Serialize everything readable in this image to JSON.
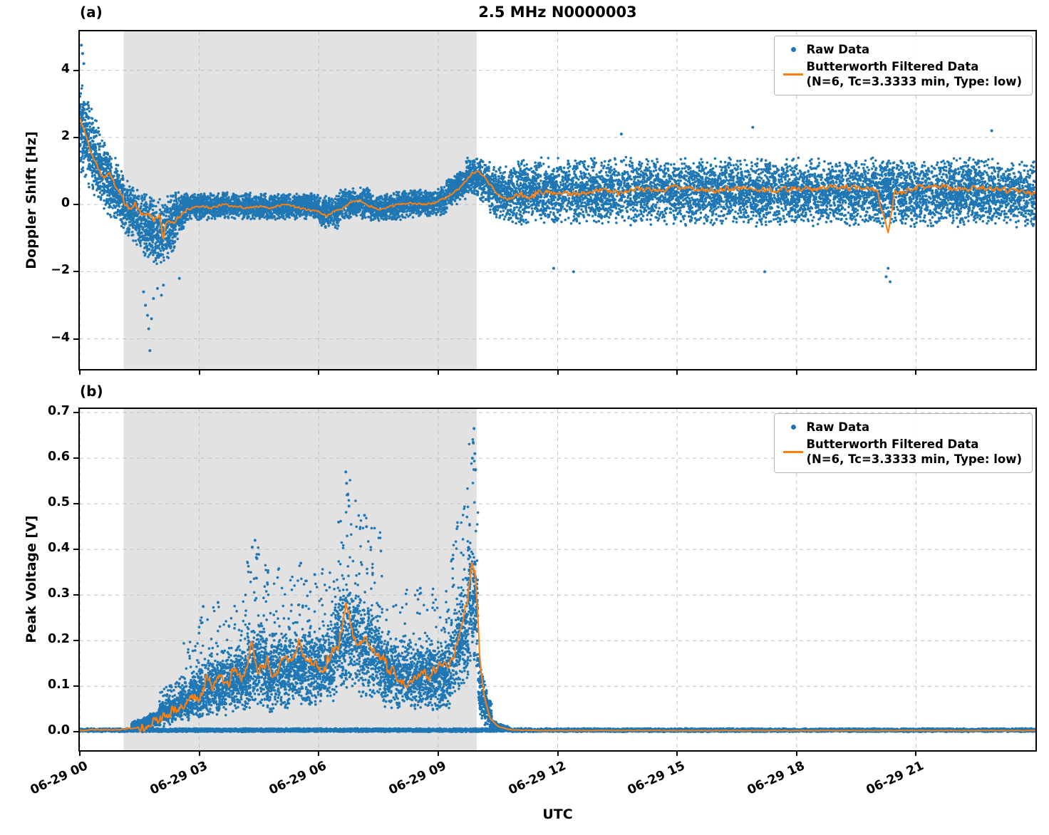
{
  "title": "2.5 MHz N0000003",
  "xlabel": "UTC",
  "legend": {
    "raw_label": "Raw Data",
    "filtered_label_line1": "Butterworth Filtered Data",
    "filtered_label_line2": "(N=6, Tc=3.3333 min, Type: low)"
  },
  "colors": {
    "raw": "#1f77b4",
    "filtered": "#ff7f0e",
    "shade": "rgba(190,190,190,0.45)",
    "grid": "#bbbbbb",
    "text": "#000000"
  },
  "chart_data": [
    {
      "type": "scatter",
      "panel_label": "(a)",
      "ylabel": "Doppler Shift [Hz]",
      "ylim": [
        -4.9,
        5.16
      ],
      "xlim": [
        0,
        24
      ],
      "grid": true,
      "legend_position": "upper right",
      "seed": 42,
      "yticks": {
        "values": [
          4,
          2,
          0,
          -2,
          -4
        ],
        "labels": [
          "4",
          "2",
          "0",
          "−2",
          "−4"
        ]
      },
      "xticks": {
        "values": [
          0,
          3,
          6,
          9,
          12,
          15,
          18,
          21
        ],
        "labels": [
          "06-29 00",
          "06-29 03",
          "06-29 06",
          "06-29 09",
          "06-29 12",
          "06-29 15",
          "06-29 18",
          "06-29 21"
        ]
      },
      "shaded_region": [
        1.1,
        9.97
      ],
      "series_names": [
        "Raw Data",
        "Butterworth Filtered Data (N=6, Tc=3.3333 min, Type: low)"
      ],
      "filtered_keypoints": [
        [
          0,
          2.6
        ],
        [
          0.15,
          2.0
        ],
        [
          0.3,
          1.5
        ],
        [
          0.45,
          1.1
        ],
        [
          0.6,
          0.8
        ],
        [
          0.75,
          0.95
        ],
        [
          0.9,
          0.55
        ],
        [
          1.0,
          0.4
        ],
        [
          1.1,
          0.1
        ],
        [
          1.25,
          -0.2
        ],
        [
          1.4,
          0.05
        ],
        [
          1.55,
          -0.35
        ],
        [
          1.7,
          -0.2
        ],
        [
          1.85,
          -0.5
        ],
        [
          2.0,
          -0.3
        ],
        [
          2.1,
          -1.05
        ],
        [
          2.2,
          -0.45
        ],
        [
          2.35,
          -0.6
        ],
        [
          2.5,
          -0.3
        ],
        [
          2.7,
          -0.15
        ],
        [
          3.0,
          -0.05
        ],
        [
          3.3,
          -0.1
        ],
        [
          3.6,
          0.0
        ],
        [
          3.9,
          -0.05
        ],
        [
          4.2,
          -0.1
        ],
        [
          4.5,
          -0.05
        ],
        [
          4.8,
          -0.1
        ],
        [
          5.1,
          0.0
        ],
        [
          5.4,
          -0.05
        ],
        [
          5.7,
          -0.15
        ],
        [
          6.0,
          -0.2
        ],
        [
          6.2,
          -0.35
        ],
        [
          6.4,
          -0.2
        ],
        [
          6.6,
          -0.1
        ],
        [
          6.8,
          0.05
        ],
        [
          7.0,
          0.15
        ],
        [
          7.2,
          0.0
        ],
        [
          7.4,
          -0.1
        ],
        [
          7.6,
          -0.15
        ],
        [
          7.8,
          -0.05
        ],
        [
          8.0,
          0.0
        ],
        [
          8.3,
          0.05
        ],
        [
          8.6,
          0.0
        ],
        [
          8.9,
          0.05
        ],
        [
          9.2,
          0.2
        ],
        [
          9.5,
          0.45
        ],
        [
          9.7,
          0.7
        ],
        [
          9.85,
          0.95
        ],
        [
          10.0,
          1.0
        ],
        [
          10.15,
          0.85
        ],
        [
          10.3,
          0.6
        ],
        [
          10.5,
          0.3
        ],
        [
          10.7,
          0.15
        ],
        [
          10.9,
          0.25
        ],
        [
          11.1,
          0.3
        ],
        [
          11.3,
          0.2
        ],
        [
          11.5,
          0.35
        ],
        [
          12.0,
          0.4
        ],
        [
          12.5,
          0.3
        ],
        [
          13.0,
          0.45
        ],
        [
          13.5,
          0.35
        ],
        [
          14.0,
          0.5
        ],
        [
          14.5,
          0.4
        ],
        [
          15.0,
          0.55
        ],
        [
          15.5,
          0.45
        ],
        [
          16.0,
          0.4
        ],
        [
          16.5,
          0.5
        ],
        [
          17.0,
          0.45
        ],
        [
          17.5,
          0.4
        ],
        [
          18.0,
          0.5
        ],
        [
          18.5,
          0.45
        ],
        [
          19.0,
          0.55
        ],
        [
          19.5,
          0.5
        ],
        [
          20.0,
          0.45
        ],
        [
          20.3,
          -0.85
        ],
        [
          20.45,
          0.3
        ],
        [
          21.0,
          0.5
        ],
        [
          21.5,
          0.55
        ],
        [
          22.0,
          0.45
        ],
        [
          22.5,
          0.5
        ],
        [
          23.0,
          0.45
        ],
        [
          23.5,
          0.4
        ],
        [
          24.0,
          0.3
        ]
      ],
      "filtered_noise": [
        [
          0,
          1.0,
          0.08
        ],
        [
          1.0,
          2.6,
          0.12
        ],
        [
          2.6,
          9.2,
          0.045
        ],
        [
          9.2,
          10.6,
          0.05
        ],
        [
          10.6,
          24,
          0.12
        ]
      ],
      "raw_band": [
        [
          0.0,
          0.3,
          2.4,
          1.6,
          1.5,
          1.3,
          700,
          0
        ],
        [
          0.3,
          0.7,
          1.6,
          0.7,
          1.3,
          1.1,
          700,
          0
        ],
        [
          0.7,
          1.1,
          0.7,
          0.1,
          1.1,
          0.9,
          700,
          0
        ],
        [
          1.1,
          1.5,
          -0.1,
          -0.4,
          0.9,
          0.9,
          600,
          0
        ],
        [
          1.5,
          2.0,
          -0.5,
          -0.9,
          1.0,
          1.1,
          600,
          0
        ],
        [
          2.0,
          2.4,
          -0.9,
          -0.5,
          1.1,
          0.9,
          600,
          0
        ],
        [
          2.4,
          2.7,
          -0.4,
          -0.1,
          0.8,
          0.5,
          600,
          0
        ],
        [
          2.7,
          6.0,
          -0.05,
          -0.05,
          0.42,
          0.42,
          550,
          0
        ],
        [
          6.0,
          6.5,
          -0.2,
          -0.25,
          0.5,
          0.5,
          550,
          0
        ],
        [
          6.5,
          7.3,
          0.0,
          0.05,
          0.5,
          0.5,
          550,
          0
        ],
        [
          7.3,
          8.1,
          -0.1,
          -0.05,
          0.45,
          0.45,
          550,
          0
        ],
        [
          8.1,
          9.2,
          0.0,
          0.1,
          0.42,
          0.45,
          550,
          0
        ],
        [
          9.2,
          9.7,
          0.3,
          0.7,
          0.5,
          0.55,
          600,
          0
        ],
        [
          9.7,
          10.3,
          0.9,
          0.6,
          0.6,
          0.7,
          600,
          0
        ],
        [
          10.3,
          10.9,
          0.4,
          0.3,
          0.75,
          0.9,
          550,
          0
        ],
        [
          10.9,
          24.0,
          0.4,
          0.35,
          1.05,
          1.05,
          520,
          0
        ]
      ],
      "outliers": [
        [
          0.04,
          4.75
        ],
        [
          0.07,
          4.5
        ],
        [
          0.1,
          4.2
        ],
        [
          1.6,
          -2.6
        ],
        [
          1.65,
          -3.0
        ],
        [
          1.7,
          -3.3
        ],
        [
          1.73,
          -3.7
        ],
        [
          1.76,
          -4.35
        ],
        [
          1.8,
          -3.4
        ],
        [
          1.85,
          -2.8
        ],
        [
          1.95,
          -2.5
        ],
        [
          2.05,
          -2.7
        ],
        [
          2.1,
          -2.4
        ],
        [
          2.5,
          -2.2
        ],
        [
          11.9,
          -1.9
        ],
        [
          12.4,
          -2.0
        ],
        [
          13.6,
          2.1
        ],
        [
          16.9,
          2.3
        ],
        [
          17.2,
          -2.0
        ],
        [
          20.25,
          -2.15
        ],
        [
          20.3,
          -1.9
        ],
        [
          20.35,
          -2.3
        ],
        [
          22.9,
          2.2
        ]
      ]
    },
    {
      "type": "scatter",
      "panel_label": "(b)",
      "ylabel": "Peak Voltage [V]",
      "ylim": [
        -0.04,
        0.708
      ],
      "xlim": [
        0,
        24
      ],
      "grid": true,
      "legend_position": "upper right",
      "seed": 7,
      "clamp_min": -0.006,
      "line_clamp_min": 0.0005,
      "yticks": {
        "values": [
          0.7,
          0.6,
          0.5,
          0.4,
          0.3,
          0.2,
          0.1,
          0.0
        ],
        "labels": [
          "0.7",
          "0.6",
          "0.5",
          "0.4",
          "0.3",
          "0.2",
          "0.1",
          "0.0"
        ]
      },
      "xticks": {
        "values": [
          0,
          3,
          6,
          9,
          12,
          15,
          18,
          21
        ],
        "labels": [
          "06-29 00",
          "06-29 03",
          "06-29 06",
          "06-29 09",
          "06-29 12",
          "06-29 15",
          "06-29 18",
          "06-29 21"
        ]
      },
      "shaded_region": [
        1.1,
        9.97
      ],
      "series_names": [
        "Raw Data",
        "Butterworth Filtered Data (N=6, Tc=3.3333 min, Type: low)"
      ],
      "filtered_keypoints": [
        [
          0,
          0.004
        ],
        [
          1.0,
          0.005
        ],
        [
          1.5,
          0.01
        ],
        [
          2.0,
          0.022
        ],
        [
          2.3,
          0.04
        ],
        [
          2.6,
          0.06
        ],
        [
          2.8,
          0.075
        ],
        [
          3.0,
          0.07
        ],
        [
          3.2,
          0.125
        ],
        [
          3.35,
          0.09
        ],
        [
          3.5,
          0.12
        ],
        [
          3.7,
          0.1
        ],
        [
          3.9,
          0.14
        ],
        [
          4.1,
          0.11
        ],
        [
          4.3,
          0.19
        ],
        [
          4.5,
          0.13
        ],
        [
          4.7,
          0.16
        ],
        [
          4.9,
          0.12
        ],
        [
          5.1,
          0.17
        ],
        [
          5.3,
          0.15
        ],
        [
          5.5,
          0.2
        ],
        [
          5.7,
          0.16
        ],
        [
          5.9,
          0.15
        ],
        [
          6.1,
          0.13
        ],
        [
          6.3,
          0.17
        ],
        [
          6.5,
          0.19
        ],
        [
          6.7,
          0.29
        ],
        [
          6.85,
          0.22
        ],
        [
          7.0,
          0.19
        ],
        [
          7.2,
          0.21
        ],
        [
          7.4,
          0.17
        ],
        [
          7.6,
          0.16
        ],
        [
          7.8,
          0.13
        ],
        [
          8.0,
          0.12
        ],
        [
          8.2,
          0.11
        ],
        [
          8.4,
          0.12
        ],
        [
          8.6,
          0.13
        ],
        [
          8.8,
          0.12
        ],
        [
          9.0,
          0.15
        ],
        [
          9.2,
          0.14
        ],
        [
          9.4,
          0.17
        ],
        [
          9.6,
          0.23
        ],
        [
          9.75,
          0.3
        ],
        [
          9.85,
          0.38
        ],
        [
          9.95,
          0.33
        ],
        [
          10.05,
          0.15
        ],
        [
          10.15,
          0.08
        ],
        [
          10.3,
          0.03
        ],
        [
          10.5,
          0.012
        ],
        [
          10.8,
          0.005
        ],
        [
          11.5,
          0.003
        ],
        [
          24,
          0.003
        ]
      ],
      "filtered_noise": [
        [
          0,
          1.5,
          0.002
        ],
        [
          1.5,
          10.1,
          0.018
        ],
        [
          10.1,
          24,
          0.0008
        ]
      ],
      "raw_band": [
        [
          0.0,
          24.0,
          0.004,
          0.004,
          0.004,
          0.004,
          420,
          0
        ],
        [
          1.3,
          2.0,
          0.012,
          0.03,
          0.01,
          0.02,
          500,
          0
        ],
        [
          2.0,
          2.6,
          0.04,
          0.06,
          0.03,
          0.04,
          550,
          0.8
        ],
        [
          2.6,
          3.2,
          0.07,
          0.1,
          0.05,
          0.07,
          600,
          1.6
        ],
        [
          3.2,
          4.2,
          0.1,
          0.12,
          0.07,
          0.08,
          650,
          1.6
        ],
        [
          4.2,
          4.7,
          0.14,
          0.15,
          0.1,
          0.1,
          650,
          1.7
        ],
        [
          4.7,
          6.4,
          0.13,
          0.15,
          0.09,
          0.09,
          650,
          1.6
        ],
        [
          6.4,
          7.0,
          0.2,
          0.22,
          0.12,
          0.13,
          650,
          1.8
        ],
        [
          7.0,
          7.6,
          0.19,
          0.16,
          0.12,
          0.11,
          650,
          1.6
        ],
        [
          7.6,
          9.3,
          0.13,
          0.12,
          0.08,
          0.08,
          650,
          1.5
        ],
        [
          9.3,
          9.75,
          0.16,
          0.24,
          0.1,
          0.13,
          650,
          1.5
        ],
        [
          9.75,
          10.0,
          0.3,
          0.28,
          0.17,
          0.15,
          800,
          1.6
        ],
        [
          10.0,
          10.35,
          0.1,
          0.03,
          0.08,
          0.03,
          700,
          0
        ],
        [
          10.35,
          10.8,
          0.015,
          0.006,
          0.012,
          0.005,
          600,
          0
        ]
      ],
      "outliers": [
        [
          3.1,
          0.275
        ],
        [
          4.33,
          0.405
        ],
        [
          4.4,
          0.42
        ],
        [
          4.45,
          0.38
        ],
        [
          5.55,
          0.37
        ],
        [
          5.9,
          0.345
        ],
        [
          6.5,
          0.46
        ],
        [
          6.68,
          0.57
        ],
        [
          6.7,
          0.545
        ],
        [
          6.73,
          0.52
        ],
        [
          6.76,
          0.495
        ],
        [
          7.15,
          0.475
        ],
        [
          7.2,
          0.45
        ],
        [
          8.55,
          0.315
        ],
        [
          9.55,
          0.3
        ],
        [
          9.86,
          0.6
        ],
        [
          9.88,
          0.635
        ],
        [
          9.9,
          0.665
        ],
        [
          9.92,
          0.61
        ],
        [
          9.94,
          0.575
        ]
      ]
    }
  ]
}
